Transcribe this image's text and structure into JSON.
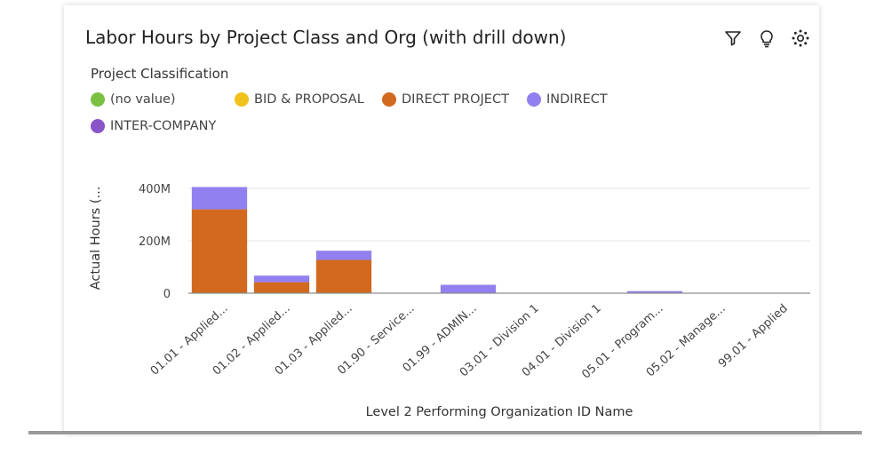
{
  "card": {
    "title": "Labor Hours by Project Class and Org (with drill down)",
    "icons": [
      "filter-icon",
      "lightbulb-icon",
      "settings-icon"
    ]
  },
  "legend": {
    "title": "Project Classification",
    "items": [
      {
        "label": "(no value)",
        "color": "#7ac143"
      },
      {
        "label": "BID & PROPOSAL",
        "color": "#f1c21b"
      },
      {
        "label": "DIRECT PROJECT",
        "color": "#d2691e"
      },
      {
        "label": "INDIRECT",
        "color": "#9180ef"
      },
      {
        "label": "INTER-COMPANY",
        "color": "#8a55c8"
      }
    ]
  },
  "chart_data": {
    "type": "bar",
    "stacked": true,
    "xlabel": "Level 2 Performing Organization ID Name",
    "ylabel": "Actual Hours (...",
    "ylim": [
      0,
      400000000
    ],
    "yticks": [
      {
        "value": 0,
        "label": "0"
      },
      {
        "value": 200000000,
        "label": "200M"
      },
      {
        "value": 400000000,
        "label": "400M"
      }
    ],
    "grid": true,
    "legend_position": "top-left",
    "categories": [
      "01.01 - Applied...",
      "01.02 - Applied...",
      "01.03 - Applied...",
      "01.90 - Service...",
      "01.99 - ADMIN...",
      "03.01 - Division 1",
      "04.01 - Division 1",
      "05.01 - Program...",
      "05.02 - Manage...",
      "99.01 - Applied"
    ],
    "series": [
      {
        "name": "(no value)",
        "color": "#7ac143",
        "values": [
          0,
          0,
          0,
          0,
          0,
          0,
          0,
          0,
          0,
          0
        ]
      },
      {
        "name": "BID & PROPOSAL",
        "color": "#f1c21b",
        "values": [
          0,
          0,
          0,
          0,
          0,
          0,
          0,
          0,
          0,
          0
        ]
      },
      {
        "name": "DIRECT PROJECT",
        "color": "#d2691e",
        "values": [
          320000000,
          42000000,
          127000000,
          0,
          0,
          0,
          0,
          0,
          0,
          0
        ]
      },
      {
        "name": "INDIRECT",
        "color": "#9180ef",
        "values": [
          85000000,
          25000000,
          35000000,
          1000000,
          32000000,
          0,
          0,
          8000000,
          1000000,
          0
        ]
      },
      {
        "name": "INTER-COMPANY",
        "color": "#8a55c8",
        "values": [
          0,
          0,
          0,
          0,
          0,
          0,
          0,
          0,
          0,
          0
        ]
      }
    ]
  }
}
